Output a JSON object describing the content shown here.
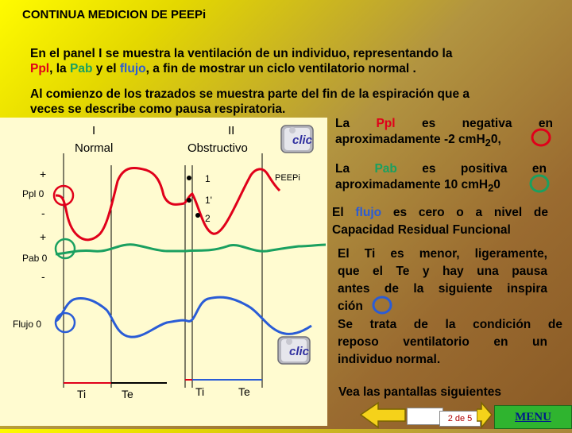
{
  "title": "CONTINUA  MEDICION DE PEEPi",
  "p1": {
    "line1": "En el panel I se muestra la ventilación de un individuo, representando la",
    "ppl": "Ppl",
    "sep1": ", la ",
    "pab": "Pab",
    "sep2": " y el ",
    "flujo": "flujo",
    "rest": ", a fin de mostrar un ciclo ventilatorio normal ."
  },
  "p2": {
    "line1": "Al comienzo de los trazados se muestra parte del fin de la espiración que a",
    "line2": "veces se describe como pausa respiratoria."
  },
  "panel": {
    "label_I": "I",
    "label_normal": "Normal",
    "label_II": "II",
    "label_obstructivo": "Obstructivo",
    "ppl_plus": "+",
    "ppl_zero": "Ppl 0",
    "ppl_minus": "-",
    "pab_plus": "+",
    "pab_zero": "Pab 0",
    "pab_minus": "-",
    "flujo_zero": "Flujo 0",
    "peepi": "PEEPi",
    "mark_1": "1",
    "mark_1p": "1'",
    "mark_2": "2",
    "ti_1": "Ti",
    "te_1": "Te",
    "ti_2": "Ti",
    "te_2": "Te"
  },
  "clic_label": "clic",
  "right": {
    "ppl": [
      "La",
      "Ppl",
      "es",
      "negativa",
      "en"
    ],
    "ppl_line2a": "aproximadamente -2 cmH",
    "ppl_sub": "2",
    "ppl_line2b": "0,",
    "pab": [
      "La",
      "Pab",
      "es",
      "positiva",
      "en"
    ],
    "pab_line2a": "aproximadamente 10 cmH",
    "pab_sub": "2",
    "pab_line2b": "0",
    "flujo_l1a": "El ",
    "flujo_word": "flujo",
    "flujo_l1b": " es cero o a nivel de",
    "flujo_l2": "Capacidad Residual Funcional",
    "ti_lines": [
      "El Ti es menor, ligeramente,",
      "que el Te y hay una pausa",
      "antes de la siguiente inspira"
    ],
    "ti_last": "ción",
    "trata_lines": [
      "Se trata de la condición de",
      "reposo ventilatorio en un"
    ],
    "trata_last": "individuo normal."
  },
  "footer": {
    "vea": "Vea las pantallas siguientes",
    "page": "2 de 5",
    "menu": "MENU"
  },
  "colors": {
    "ppl": "#e0001a",
    "pab": "#1aa060",
    "flujo": "#2a5cd6",
    "gridline": "#000000"
  }
}
